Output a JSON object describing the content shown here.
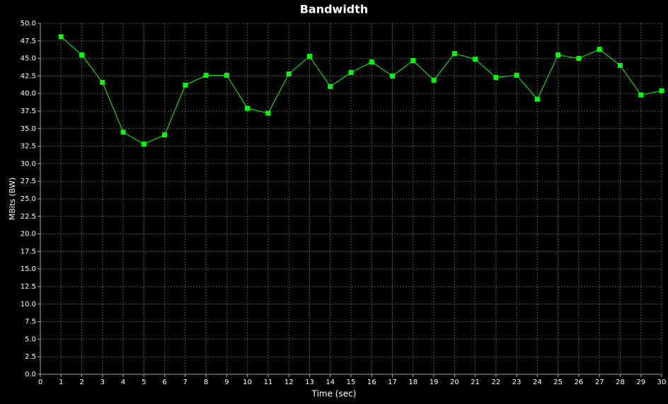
{
  "chart_data": {
    "type": "line",
    "title": "Bandwidth",
    "x_label": "Time (sec)",
    "y_label": "MBits (BW)",
    "x": [
      1,
      2,
      3,
      4,
      5,
      6,
      7,
      8,
      9,
      10,
      11,
      12,
      13,
      14,
      15,
      16,
      17,
      18,
      19,
      20,
      21,
      22,
      23,
      24,
      25,
      26,
      27,
      28,
      29,
      30
    ],
    "series": [
      {
        "name": "Bandwidth",
        "color": "#00ff00",
        "values": [
          48.1,
          45.5,
          41.6,
          34.5,
          32.8,
          34.1,
          41.2,
          42.6,
          42.6,
          37.9,
          37.2,
          42.8,
          45.3,
          41.0,
          43.0,
          44.5,
          42.5,
          44.7,
          41.9,
          45.7,
          44.9,
          42.3,
          42.6,
          39.2,
          45.5,
          45.0,
          46.3,
          44.0,
          39.8,
          40.4
        ]
      }
    ],
    "xlim": [
      0,
      30
    ],
    "xticks": [
      0,
      1,
      2,
      3,
      4,
      5,
      6,
      7,
      8,
      9,
      10,
      11,
      12,
      13,
      14,
      15,
      16,
      17,
      18,
      19,
      20,
      21,
      22,
      23,
      24,
      25,
      26,
      27,
      28,
      29,
      30
    ],
    "ylim": [
      0,
      50
    ],
    "yticks": [
      {
        "value": 0,
        "label": "0.0"
      },
      2.5,
      {
        "value": 5,
        "label": "5.0"
      },
      7.5,
      {
        "value": 10,
        "label": "10.0"
      },
      12.5,
      {
        "value": 15,
        "label": "15.0"
      },
      17.5,
      {
        "value": 20,
        "label": "20.0"
      },
      22.5,
      {
        "value": 25,
        "label": "25.0"
      },
      27.5,
      {
        "value": 30,
        "label": "30.0"
      },
      32.5,
      {
        "value": 35,
        "label": "35.0"
      },
      37.5,
      {
        "value": 40,
        "label": "40.0"
      },
      42.5,
      {
        "value": 45,
        "label": "45.0"
      },
      47.5,
      {
        "value": 50,
        "label": "50.0"
      }
    ],
    "grid": true
  }
}
